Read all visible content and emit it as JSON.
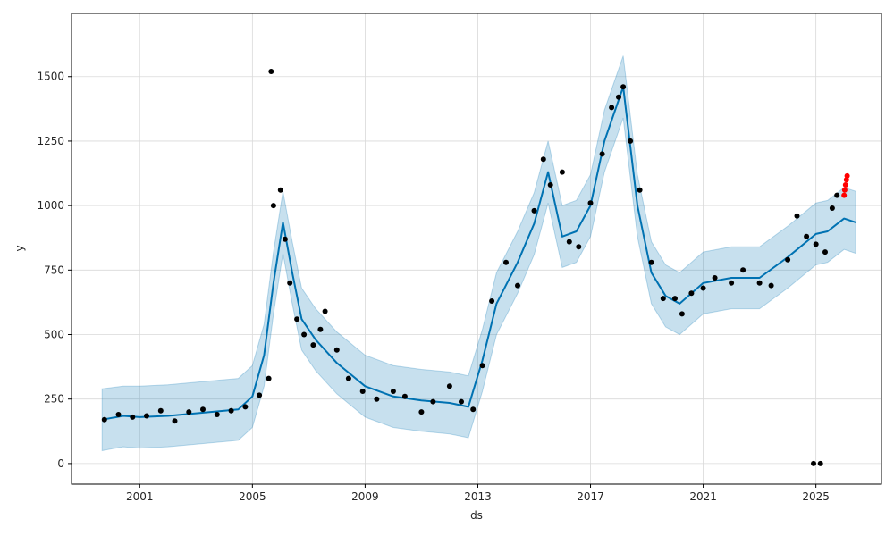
{
  "chart_data": {
    "type": "scatter",
    "title": "",
    "xlabel": "ds",
    "ylabel": "y",
    "xlim": [
      "1998-08-01",
      "2027-05-01"
    ],
    "ylim": [
      -80,
      1745
    ],
    "grid": true,
    "colors": {
      "actual": "#000000",
      "forecast": "#0072B2",
      "band": "#0072B2",
      "recent": "#ff0000",
      "grid": "#d9d9d9",
      "axes": "#000000"
    },
    "x_ticks": [
      {
        "date": "2001-01-01",
        "label": "2001"
      },
      {
        "date": "2005-01-01",
        "label": "2005"
      },
      {
        "date": "2009-01-01",
        "label": "2009"
      },
      {
        "date": "2013-01-01",
        "label": "2013"
      },
      {
        "date": "2017-01-01",
        "label": "2017"
      },
      {
        "date": "2021-01-01",
        "label": "2021"
      },
      {
        "date": "2025-01-01",
        "label": "2025"
      }
    ],
    "y_ticks": [
      {
        "value": 0,
        "label": "0"
      },
      {
        "value": 250,
        "label": "250"
      },
      {
        "value": 500,
        "label": "500"
      },
      {
        "value": 750,
        "label": "750"
      },
      {
        "value": 1000,
        "label": "1000"
      },
      {
        "value": 1250,
        "label": "1250"
      },
      {
        "value": 1500,
        "label": "1500"
      }
    ],
    "series": [
      {
        "role": "actual",
        "x": [
          "1999-10-01",
          "2000-04-01",
          "2000-10-01",
          "2001-04-01",
          "2001-10-01",
          "2002-04-01",
          "2002-10-01",
          "2003-04-01",
          "2003-10-01",
          "2004-04-01",
          "2004-10-01",
          "2005-04-01",
          "2005-08-01",
          "2005-10-01",
          "2006-01-01",
          "2006-03-01",
          "2006-05-01",
          "2006-08-01",
          "2006-11-01",
          "2007-03-01",
          "2007-06-01",
          "2007-08-01",
          "2008-01-01",
          "2008-06-01",
          "2008-12-01",
          "2009-06-01",
          "2010-01-01",
          "2010-06-01",
          "2011-01-01",
          "2011-06-01",
          "2012-01-01",
          "2012-06-01",
          "2012-11-01",
          "2013-03-01",
          "2013-07-01",
          "2014-01-01",
          "2014-06-01",
          "2015-01-01",
          "2015-05-01",
          "2015-08-01",
          "2016-01-01",
          "2016-04-01",
          "2016-08-01",
          "2017-01-01",
          "2017-06-01",
          "2017-10-01",
          "2018-01-01",
          "2018-03-01",
          "2018-06-01",
          "2018-10-01",
          "2019-03-01",
          "2019-08-01",
          "2020-01-01",
          "2020-04-01",
          "2020-08-01",
          "2021-01-01",
          "2021-06-01",
          "2022-01-01",
          "2022-06-01",
          "2023-01-01",
          "2023-06-01",
          "2024-01-01",
          "2024-05-01",
          "2024-09-01",
          "2025-01-01",
          "2025-05-01",
          "2025-08-01",
          "2025-10-01"
        ],
        "y": [
          170,
          190,
          180,
          185,
          205,
          165,
          200,
          210,
          190,
          205,
          220,
          265,
          330,
          1000,
          1060,
          870,
          700,
          560,
          500,
          460,
          520,
          590,
          440,
          330,
          280,
          250,
          280,
          260,
          200,
          240,
          300,
          240,
          210,
          380,
          630,
          780,
          690,
          980,
          1180,
          1080,
          1130,
          860,
          840,
          1010,
          1200,
          1380,
          1420,
          1460,
          1250,
          1060,
          780,
          640,
          640,
          580,
          660,
          680,
          720,
          700,
          750,
          700,
          690,
          790,
          960,
          880,
          850,
          820,
          990,
          1040
        ]
      },
      {
        "role": "outlier",
        "x": [
          "2005-09-01",
          "2024-12-01",
          "2025-03-01"
        ],
        "y": [
          1520,
          0,
          0
        ]
      },
      {
        "role": "recent",
        "x": [
          "2026-01-01",
          "2026-01-10",
          "2026-01-20",
          "2026-02-01",
          "2026-02-10"
        ],
        "y": [
          1040,
          1060,
          1080,
          1100,
          1115
        ]
      },
      {
        "role": "forecast",
        "x": [
          "1999-09-01",
          "2000-06-01",
          "2001-01-01",
          "2002-01-01",
          "2003-01-01",
          "2004-01-01",
          "2004-07-01",
          "2005-01-01",
          "2005-06-01",
          "2005-10-01",
          "2006-02-01",
          "2006-06-01",
          "2006-10-01",
          "2007-04-01",
          "2008-01-01",
          "2009-01-01",
          "2010-01-01",
          "2011-01-01",
          "2012-01-01",
          "2012-09-01",
          "2013-03-01",
          "2013-09-01",
          "2014-06-01",
          "2015-01-01",
          "2015-07-01",
          "2016-01-01",
          "2016-07-01",
          "2017-01-01",
          "2017-07-01",
          "2018-03-01",
          "2018-09-01",
          "2019-03-01",
          "2019-09-01",
          "2020-03-01",
          "2021-01-01",
          "2022-01-01",
          "2023-01-01",
          "2024-01-01",
          "2025-01-01",
          "2025-06-01",
          "2026-01-01",
          "2026-06-01"
        ],
        "y": [
          170,
          185,
          180,
          185,
          195,
          205,
          210,
          260,
          420,
          700,
          935,
          740,
          560,
          480,
          390,
          300,
          260,
          245,
          235,
          220,
          400,
          620,
          780,
          930,
          1130,
          880,
          900,
          1000,
          1250,
          1460,
          1000,
          740,
          650,
          620,
          700,
          720,
          720,
          800,
          890,
          900,
          950,
          935
        ]
      },
      {
        "role": "forecast_upper",
        "x": [
          "1999-09-01",
          "2000-06-01",
          "2001-01-01",
          "2002-01-01",
          "2003-01-01",
          "2004-01-01",
          "2004-07-01",
          "2005-01-01",
          "2005-06-01",
          "2005-10-01",
          "2006-02-01",
          "2006-06-01",
          "2006-10-01",
          "2007-04-01",
          "2008-01-01",
          "2009-01-01",
          "2010-01-01",
          "2011-01-01",
          "2012-01-01",
          "2012-09-01",
          "2013-03-01",
          "2013-09-01",
          "2014-06-01",
          "2015-01-01",
          "2015-07-01",
          "2016-01-01",
          "2016-07-01",
          "2017-01-01",
          "2017-07-01",
          "2018-03-01",
          "2018-09-01",
          "2019-03-01",
          "2019-09-01",
          "2020-03-01",
          "2021-01-01",
          "2022-01-01",
          "2023-01-01",
          "2024-01-01",
          "2025-01-01",
          "2025-06-01",
          "2026-01-01",
          "2026-06-01"
        ],
        "y": [
          290,
          300,
          300,
          305,
          315,
          325,
          330,
          380,
          540,
          820,
          1055,
          860,
          680,
          600,
          510,
          420,
          380,
          365,
          355,
          340,
          520,
          740,
          900,
          1050,
          1250,
          1000,
          1020,
          1120,
          1370,
          1580,
          1120,
          860,
          770,
          740,
          820,
          840,
          840,
          920,
          1010,
          1020,
          1070,
          1055
        ]
      },
      {
        "role": "forecast_lower",
        "x": [
          "1999-09-01",
          "2000-06-01",
          "2001-01-01",
          "2002-01-01",
          "2003-01-01",
          "2004-01-01",
          "2004-07-01",
          "2005-01-01",
          "2005-06-01",
          "2005-10-01",
          "2006-02-01",
          "2006-06-01",
          "2006-10-01",
          "2007-04-01",
          "2008-01-01",
          "2009-01-01",
          "2010-01-01",
          "2011-01-01",
          "2012-01-01",
          "2012-09-01",
          "2013-03-01",
          "2013-09-01",
          "2014-06-01",
          "2015-01-01",
          "2015-07-01",
          "2016-01-01",
          "2016-07-01",
          "2017-01-01",
          "2017-07-01",
          "2018-03-01",
          "2018-09-01",
          "2019-03-01",
          "2019-09-01",
          "2020-03-01",
          "2021-01-01",
          "2022-01-01",
          "2023-01-01",
          "2024-01-01",
          "2025-01-01",
          "2025-06-01",
          "2026-01-01",
          "2026-06-01"
        ],
        "y": [
          50,
          65,
          60,
          65,
          75,
          85,
          90,
          140,
          300,
          580,
          815,
          620,
          440,
          360,
          270,
          180,
          140,
          125,
          115,
          100,
          280,
          500,
          660,
          810,
          1010,
          760,
          780,
          880,
          1130,
          1340,
          880,
          620,
          530,
          500,
          580,
          600,
          600,
          680,
          770,
          780,
          830,
          815
        ]
      }
    ]
  }
}
